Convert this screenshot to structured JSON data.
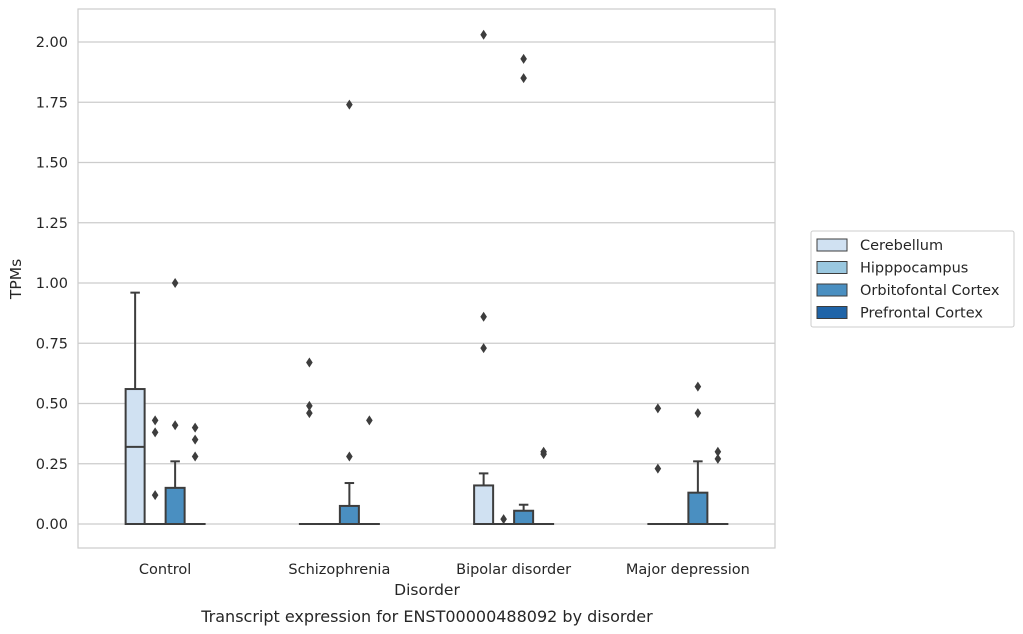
{
  "chart_data": {
    "type": "box",
    "title": "",
    "caption": "Transcript expression for ENST00000488092 by disorder",
    "xlabel": "Disorder",
    "ylabel": "TPMs",
    "ylim": [
      -0.1,
      2.13
    ],
    "yticks": [
      "0.00",
      "0.25",
      "0.50",
      "0.75",
      "1.00",
      "1.25",
      "1.50",
      "1.75",
      "2.00"
    ],
    "grid": "horizontal",
    "legend_position": "outside-right",
    "categories": [
      "Control",
      "Schizophrenia",
      "Bipolar disorder",
      "Major depression"
    ],
    "series": [
      {
        "name": "Cerebellum",
        "color": "#d0e1f2",
        "boxes": [
          {
            "q1": 0,
            "median": 0.32,
            "q3": 0.56,
            "whisker_low": 0,
            "whisker_high": 0.96,
            "outliers": []
          },
          {
            "q1": 0,
            "median": 0,
            "q3": 0,
            "whisker_low": 0,
            "whisker_high": 0,
            "outliers": [
              0.46,
              0.49,
              0.67
            ]
          },
          {
            "q1": 0,
            "median": 0,
            "q3": 0.16,
            "whisker_low": 0,
            "whisker_high": 0.21,
            "outliers": [
              0.73,
              0.86,
              2.03
            ]
          },
          {
            "q1": 0,
            "median": 0,
            "q3": 0,
            "whisker_low": 0,
            "whisker_high": 0,
            "outliers": [
              0.23,
              0.48
            ]
          }
        ]
      },
      {
        "name": "Hipppocampus",
        "color": "#9ac8e0",
        "boxes": [
          {
            "q1": 0,
            "median": 0,
            "q3": 0,
            "whisker_low": 0,
            "whisker_high": 0,
            "outliers": [
              0.12,
              0.38,
              0.43
            ]
          },
          {
            "q1": 0,
            "median": 0,
            "q3": 0,
            "whisker_low": 0,
            "whisker_high": 0,
            "outliers": []
          },
          {
            "q1": 0,
            "median": 0,
            "q3": 0,
            "whisker_low": 0,
            "whisker_high": 0,
            "outliers": [
              0.02
            ]
          },
          {
            "q1": 0,
            "median": 0,
            "q3": 0,
            "whisker_low": 0,
            "whisker_high": 0,
            "outliers": []
          }
        ]
      },
      {
        "name": "Orbitofontal Cortex",
        "color": "#4a8fc1",
        "boxes": [
          {
            "q1": 0,
            "median": 0,
            "q3": 0.15,
            "whisker_low": 0,
            "whisker_high": 0.26,
            "outliers": [
              0.41,
              1.0
            ]
          },
          {
            "q1": 0,
            "median": 0,
            "q3": 0.075,
            "whisker_low": 0,
            "whisker_high": 0.17,
            "outliers": [
              0.28,
              1.74
            ]
          },
          {
            "q1": 0,
            "median": 0,
            "q3": 0.055,
            "whisker_low": 0,
            "whisker_high": 0.08,
            "outliers": [
              1.85,
              1.93
            ]
          },
          {
            "q1": 0,
            "median": 0,
            "q3": 0.13,
            "whisker_low": 0,
            "whisker_high": 0.26,
            "outliers": [
              0.46,
              0.57
            ]
          }
        ]
      },
      {
        "name": "Prefrontal Cortex",
        "color": "#1f64a8",
        "boxes": [
          {
            "q1": 0,
            "median": 0,
            "q3": 0,
            "whisker_low": 0,
            "whisker_high": 0,
            "outliers": [
              0.28,
              0.35,
              0.4
            ]
          },
          {
            "q1": 0,
            "median": 0,
            "q3": 0,
            "whisker_low": 0,
            "whisker_high": 0,
            "outliers": [
              0.43
            ]
          },
          {
            "q1": 0,
            "median": 0,
            "q3": 0,
            "whisker_low": 0,
            "whisker_high": 0,
            "outliers": [
              0.29,
              0.3
            ]
          },
          {
            "q1": 0,
            "median": 0,
            "q3": 0,
            "whisker_low": 0,
            "whisker_high": 0,
            "outliers": [
              0.27,
              0.3
            ]
          }
        ]
      }
    ]
  }
}
